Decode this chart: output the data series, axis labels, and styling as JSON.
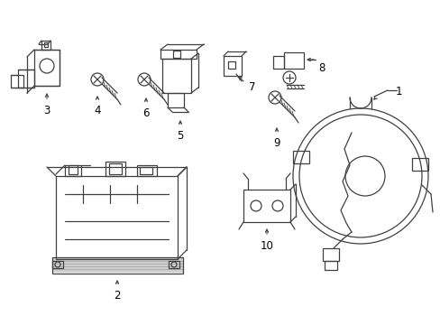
{
  "background_color": "#ffffff",
  "line_color": "#404040",
  "text_color": "#000000",
  "label_fontsize": 8.5,
  "fig_width": 4.89,
  "fig_height": 3.6,
  "dpi": 100
}
